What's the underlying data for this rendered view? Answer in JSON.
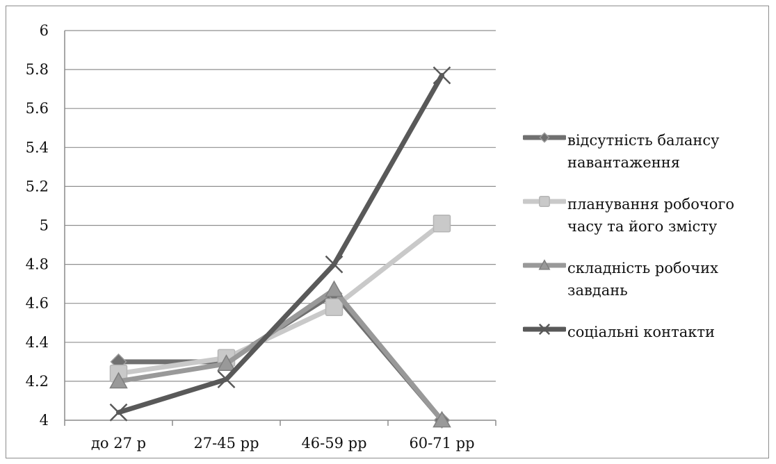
{
  "chart_data": {
    "type": "line",
    "title": "",
    "xlabel": "",
    "ylabel": "",
    "categories": [
      "до 27 р",
      "27-45 рр",
      "46-59 рр",
      "60-71 рр"
    ],
    "ylim": [
      4,
      6
    ],
    "yticks": [
      "4",
      "4.2",
      "4.4",
      "4.6",
      "4.8",
      "5",
      "5.2",
      "5.4",
      "5.6",
      "5.8",
      "6"
    ],
    "grid": true,
    "legend_position": "right",
    "series": [
      {
        "name": "відсутність балансу навантаження",
        "values": [
          4.3,
          4.3,
          4.65,
          4.0
        ],
        "color": "#707070",
        "marker": "diamond"
      },
      {
        "name": "планування робочого часу та його змісту",
        "values": [
          4.24,
          4.32,
          4.58,
          5.01
        ],
        "color": "#c9c9c9",
        "marker": "square"
      },
      {
        "name": "складність робочих завдань",
        "values": [
          4.2,
          4.29,
          4.67,
          4.0
        ],
        "color": "#999999",
        "marker": "triangle"
      },
      {
        "name": "соціальні контакти",
        "values": [
          4.04,
          4.21,
          4.8,
          5.77
        ],
        "color": "#595959",
        "marker": "x"
      }
    ]
  }
}
